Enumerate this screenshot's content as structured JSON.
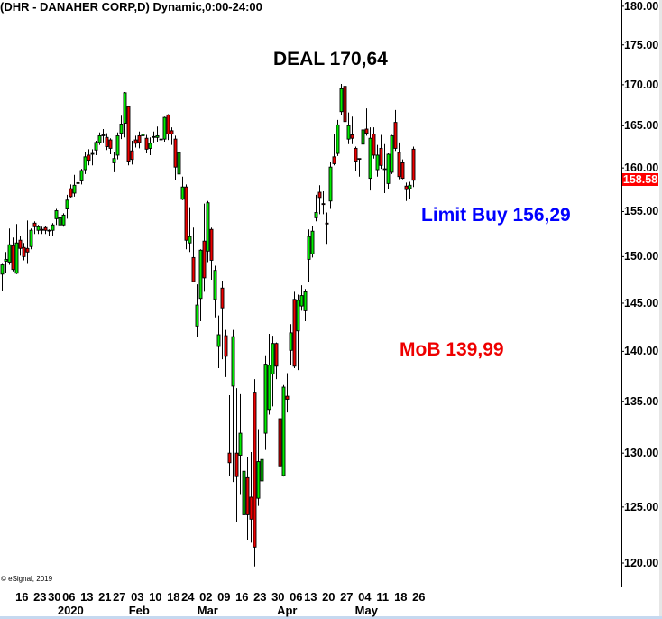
{
  "header": {
    "title": "(DHR - DANAHER CORP,D) Dynamic,0:00-24:00"
  },
  "copyright": "© eSignal, 2019",
  "annotations": {
    "deal": {
      "text": "DEAL 170,64",
      "color": "#000000"
    },
    "limit_buy": {
      "text": "Limit Buy 156,29",
      "color": "#0000ff"
    },
    "mob": {
      "text": "MoB 139,99",
      "color": "#ee0000"
    }
  },
  "chart_data": {
    "type": "candlestick",
    "title": "(DHR - DANAHER CORP,D) Dynamic,0:00-24:00",
    "y_scale": "log",
    "ylim": [
      120,
      180
    ],
    "grid": false,
    "colors": {
      "up": "#00ee00",
      "down": "#ee0000",
      "outline": "#000000",
      "last_price_bg": "#ff0000"
    },
    "last_price": {
      "value": 158.58,
      "label": "158.58"
    },
    "y_axis": {
      "position": "right",
      "ticks": [
        {
          "value": 120,
          "label": "120.00"
        },
        {
          "value": 125,
          "label": "125.00"
        },
        {
          "value": 130,
          "label": "130.00"
        },
        {
          "value": 135,
          "label": "135.00"
        },
        {
          "value": 140,
          "label": "140.00"
        },
        {
          "value": 145,
          "label": "145.00"
        },
        {
          "value": 150,
          "label": "150.00"
        },
        {
          "value": 155,
          "label": "155.00"
        },
        {
          "value": 160,
          "label": "160.00"
        },
        {
          "value": 165,
          "label": "165.00"
        },
        {
          "value": 170,
          "label": "170.00"
        },
        {
          "value": 175,
          "label": "175.00"
        },
        {
          "value": 180,
          "label": "180.00"
        }
      ]
    },
    "x_axis": {
      "ticks": [
        {
          "date": "2019-12-16",
          "label": "16"
        },
        {
          "date": "2019-12-23",
          "label": "23"
        },
        {
          "date": "2019-12-30",
          "label": "30"
        },
        {
          "date": "2020-01-06",
          "label": "06"
        },
        {
          "date": "2020-01-13",
          "label": "13"
        },
        {
          "date": "2020-01-21",
          "label": "21"
        },
        {
          "date": "2020-01-27",
          "label": "27"
        },
        {
          "date": "2020-02-03",
          "label": "03"
        },
        {
          "date": "2020-02-10",
          "label": "10"
        },
        {
          "date": "2020-02-18",
          "label": "18"
        },
        {
          "date": "2020-02-24",
          "label": "24"
        },
        {
          "date": "2020-03-02",
          "label": "02"
        },
        {
          "date": "2020-03-09",
          "label": "09"
        },
        {
          "date": "2020-03-16",
          "label": "16"
        },
        {
          "date": "2020-03-23",
          "label": "23"
        },
        {
          "date": "2020-03-30",
          "label": "30"
        },
        {
          "date": "2020-04-06",
          "label": "06"
        },
        {
          "date": "2020-04-13",
          "label": "13"
        },
        {
          "date": "2020-04-20",
          "label": "20"
        },
        {
          "date": "2020-04-27",
          "label": "27"
        },
        {
          "date": "2020-05-04",
          "label": "04"
        },
        {
          "date": "2020-05-11",
          "label": "11"
        },
        {
          "date": "2020-05-18",
          "label": "18"
        },
        {
          "date": "2020-05-26",
          "label": "26"
        }
      ],
      "months": [
        {
          "date": "2020-01-06",
          "label": "2020"
        },
        {
          "date": "2020-02-03",
          "label": "Feb"
        },
        {
          "date": "2020-03-02",
          "label": "Mar"
        },
        {
          "date": "2020-04-01",
          "label": "Apr"
        },
        {
          "date": "2020-05-04",
          "label": "May"
        }
      ]
    },
    "ohlc_fields": [
      "date",
      "open",
      "high",
      "low",
      "close"
    ],
    "bars": [
      [
        "2019-12-09",
        148.1,
        149.2,
        146.3,
        149.1
      ],
      [
        "2019-12-10",
        149.5,
        150.5,
        148.2,
        149.7
      ],
      [
        "2019-12-11",
        149.4,
        153.1,
        149.1,
        151.3
      ],
      [
        "2019-12-12",
        151.2,
        152.1,
        148.4,
        148.6
      ],
      [
        "2019-12-13",
        148.2,
        153.6,
        148.1,
        151.5
      ],
      [
        "2019-12-16",
        151.8,
        152.3,
        150.1,
        150.9
      ],
      [
        "2019-12-17",
        151.0,
        151.5,
        149.6,
        150.0
      ],
      [
        "2019-12-18",
        150.9,
        154.0,
        149.2,
        150.5
      ],
      [
        "2019-12-19",
        151.1,
        153.1,
        150.8,
        152.9
      ],
      [
        "2019-12-20",
        153.7,
        153.9,
        152.5,
        153.3
      ],
      [
        "2019-12-23",
        152.9,
        153.5,
        152.5,
        153.3
      ],
      [
        "2019-12-24",
        153.0,
        153.3,
        152.5,
        152.9
      ],
      [
        "2019-12-26",
        153.2,
        153.4,
        152.5,
        152.9
      ],
      [
        "2019-12-27",
        152.9,
        153.0,
        152.3,
        152.9
      ],
      [
        "2019-12-30",
        152.9,
        153.7,
        152.3,
        153.5
      ],
      [
        "2019-12-31",
        154.2,
        155.3,
        153.5,
        155.1
      ],
      [
        "2020-01-02",
        153.5,
        155.3,
        152.5,
        154.3
      ],
      [
        "2020-01-03",
        153.5,
        154.8,
        153.3,
        154.6
      ],
      [
        "2020-01-06",
        155.3,
        156.9,
        154.2,
        156.3
      ],
      [
        "2020-01-07",
        157.6,
        158.1,
        156.6,
        156.7
      ],
      [
        "2020-01-08",
        157.1,
        159.2,
        156.7,
        158.0
      ],
      [
        "2020-01-09",
        158.2,
        158.9,
        157.5,
        158.3
      ],
      [
        "2020-01-10",
        158.5,
        159.9,
        158.1,
        159.7
      ],
      [
        "2020-01-13",
        159.8,
        161.9,
        159.3,
        161.3
      ],
      [
        "2020-01-14",
        161.5,
        162.2,
        160.3,
        160.9
      ],
      [
        "2020-01-15",
        161.6,
        162.2,
        160.3,
        161.7
      ],
      [
        "2020-01-16",
        162.1,
        163.2,
        161.5,
        163.0
      ],
      [
        "2020-01-17",
        163.0,
        164.2,
        162.7,
        163.8
      ],
      [
        "2020-01-21",
        163.9,
        164.6,
        163.0,
        163.8
      ],
      [
        "2020-01-22",
        163.6,
        164.1,
        162.1,
        162.5
      ],
      [
        "2020-01-23",
        163.3,
        163.5,
        161.6,
        162.3
      ],
      [
        "2020-01-24",
        160.6,
        161.9,
        159.5,
        161.1
      ],
      [
        "2020-01-27",
        161.5,
        164.2,
        161.0,
        163.8
      ],
      [
        "2020-01-28",
        164.1,
        166.2,
        163.4,
        165.2
      ],
      [
        "2020-01-29",
        165.3,
        169.1,
        163.6,
        169.0
      ],
      [
        "2020-01-30",
        167.3,
        167.4,
        160.3,
        160.8
      ],
      [
        "2020-01-31",
        162.0,
        163.2,
        160.4,
        161.0
      ],
      [
        "2020-02-03",
        163.3,
        163.8,
        162.4,
        162.9
      ],
      [
        "2020-02-04",
        163.8,
        164.3,
        162.3,
        163.0
      ],
      [
        "2020-02-05",
        163.8,
        165.1,
        162.6,
        164.0
      ],
      [
        "2020-02-06",
        163.5,
        163.9,
        161.7,
        162.2
      ],
      [
        "2020-02-07",
        162.3,
        163.6,
        161.5,
        162.9
      ],
      [
        "2020-02-10",
        163.6,
        164.3,
        163.0,
        163.7
      ],
      [
        "2020-02-11",
        163.6,
        164.9,
        163.1,
        163.8
      ],
      [
        "2020-02-12",
        163.4,
        163.8,
        161.8,
        163.4
      ],
      [
        "2020-02-13",
        163.4,
        166.1,
        163.1,
        166.0
      ],
      [
        "2020-02-14",
        166.3,
        166.4,
        163.3,
        164.0
      ],
      [
        "2020-02-18",
        164.4,
        164.8,
        162.7,
        164.0
      ],
      [
        "2020-02-19",
        163.4,
        163.8,
        158.6,
        160.1
      ],
      [
        "2020-02-20",
        159.3,
        162.0,
        158.8,
        161.8
      ],
      [
        "2020-02-21",
        156.4,
        159.0,
        156.3,
        157.8
      ],
      [
        "2020-02-24",
        157.8,
        158.1,
        150.8,
        151.8
      ],
      [
        "2020-02-25",
        151.5,
        155.5,
        150.5,
        152.2
      ],
      [
        "2020-02-26",
        149.9,
        153.2,
        147.2,
        147.3
      ],
      [
        "2020-02-27",
        142.6,
        147.0,
        141.5,
        144.8
      ],
      [
        "2020-02-28",
        145.5,
        150.8,
        143.1,
        150.7
      ],
      [
        "2020-03-02",
        151.7,
        155.9,
        146.2,
        147.7
      ],
      [
        "2020-03-03",
        150.6,
        156.2,
        149.4,
        156.0
      ],
      [
        "2020-03-04",
        153.0,
        153.2,
        147.5,
        149.6
      ],
      [
        "2020-03-05",
        145.4,
        149.0,
        143.5,
        148.5
      ],
      [
        "2020-03-06",
        140.5,
        143.7,
        138.3,
        141.7
      ],
      [
        "2020-03-09",
        146.6,
        147.4,
        139.2,
        144.5
      ],
      [
        "2020-03-10",
        141.6,
        142.2,
        137.4,
        139.5
      ],
      [
        "2020-03-11",
        130.0,
        135.6,
        127.9,
        129.1
      ],
      [
        "2020-03-12",
        136.5,
        142.2,
        127.3,
        141.5
      ],
      [
        "2020-03-13",
        130.0,
        136.3,
        123.6,
        127.8
      ],
      [
        "2020-03-16",
        129.8,
        135.7,
        126.1,
        131.9
      ],
      [
        "2020-03-17",
        124.3,
        130.5,
        121.1,
        128.3
      ],
      [
        "2020-03-18",
        127.7,
        129.6,
        122.0,
        124.3
      ],
      [
        "2020-03-19",
        125.9,
        130.1,
        121.8,
        123.9
      ],
      [
        "2020-03-20",
        135.9,
        137.2,
        119.7,
        121.4
      ],
      [
        "2020-03-23",
        125.8,
        132.3,
        125.1,
        129.2
      ],
      [
        "2020-03-24",
        127.4,
        133.3,
        123.8,
        129.4
      ],
      [
        "2020-03-25",
        131.9,
        139.6,
        130.3,
        138.7
      ],
      [
        "2020-03-26",
        134.2,
        141.8,
        133.7,
        138.6
      ],
      [
        "2020-03-27",
        137.7,
        141.6,
        134.5,
        140.8
      ],
      [
        "2020-03-30",
        140.8,
        140.9,
        137.2,
        138.5
      ],
      [
        "2020-03-31",
        133.3,
        135.5,
        128.1,
        128.8
      ],
      [
        "2020-04-01",
        127.9,
        136.6,
        127.8,
        136.4
      ],
      [
        "2020-04-02",
        135.5,
        137.8,
        133.9,
        135.2
      ],
      [
        "2020-04-03",
        140.1,
        142.8,
        138.6,
        141.9
      ],
      [
        "2020-04-06",
        145.4,
        146.2,
        138.3,
        138.5
      ],
      [
        "2020-04-07",
        142.1,
        145.9,
        138.1,
        145.3
      ],
      [
        "2020-04-08",
        144.7,
        146.9,
        144.2,
        145.8
      ],
      [
        "2020-04-09",
        144.2,
        146.5,
        143.1,
        146.2
      ],
      [
        "2020-04-13",
        149.7,
        153.0,
        147.2,
        152.2
      ],
      [
        "2020-04-14",
        150.3,
        153.4,
        149.9,
        152.8
      ],
      [
        "2020-04-15",
        154.3,
        156.9,
        153.9,
        154.9
      ],
      [
        "2020-04-16",
        157.2,
        158.0,
        154.7,
        156.6
      ],
      [
        "2020-04-17",
        155.9,
        157.3,
        154.7,
        155.8
      ],
      [
        "2020-04-20",
        153.7,
        154.9,
        151.4,
        153.6
      ],
      [
        "2020-04-21",
        156.2,
        160.7,
        155.3,
        160.1
      ],
      [
        "2020-04-22",
        161.3,
        164.0,
        160.3,
        160.5
      ],
      [
        "2020-04-23",
        161.7,
        165.7,
        161.4,
        165.1
      ],
      [
        "2020-04-24",
        166.7,
        170.1,
        166.3,
        169.5
      ],
      [
        "2020-04-27",
        169.8,
        170.7,
        163.6,
        165.5
      ],
      [
        "2020-04-28",
        163.4,
        166.6,
        162.8,
        165.0
      ],
      [
        "2020-04-29",
        163.9,
        166.1,
        162.8,
        163.5
      ],
      [
        "2020-04-30",
        162.3,
        162.5,
        159.7,
        160.8
      ],
      [
        "2020-05-01",
        161.1,
        161.1,
        159.0,
        161.1
      ],
      [
        "2020-05-04",
        162.8,
        166.2,
        162.3,
        164.5
      ],
      [
        "2020-05-05",
        164.6,
        167.1,
        163.8,
        164.1
      ],
      [
        "2020-05-06",
        158.8,
        164.8,
        157.4,
        163.5
      ],
      [
        "2020-05-07",
        164.0,
        164.8,
        161.1,
        161.5
      ],
      [
        "2020-05-08",
        159.8,
        162.7,
        159.0,
        161.5
      ],
      [
        "2020-05-11",
        162.3,
        163.9,
        159.9,
        160.3
      ],
      [
        "2020-05-12",
        159.9,
        162.8,
        157.1,
        159.9
      ],
      [
        "2020-05-13",
        158.2,
        161.7,
        157.6,
        161.6
      ],
      [
        "2020-05-14",
        159.5,
        163.9,
        159.3,
        163.8
      ],
      [
        "2020-05-15",
        165.4,
        166.9,
        162.0,
        162.3
      ],
      [
        "2020-05-18",
        161.8,
        163.0,
        158.7,
        159.0
      ],
      [
        "2020-05-19",
        160.6,
        161.0,
        158.7,
        158.8
      ],
      [
        "2020-05-20",
        157.9,
        158.3,
        156.2,
        157.5
      ],
      [
        "2020-05-21",
        157.6,
        158.4,
        156.4,
        158.0
      ],
      [
        "2020-05-22",
        162.2,
        162.5,
        157.8,
        158.58
      ]
    ]
  }
}
